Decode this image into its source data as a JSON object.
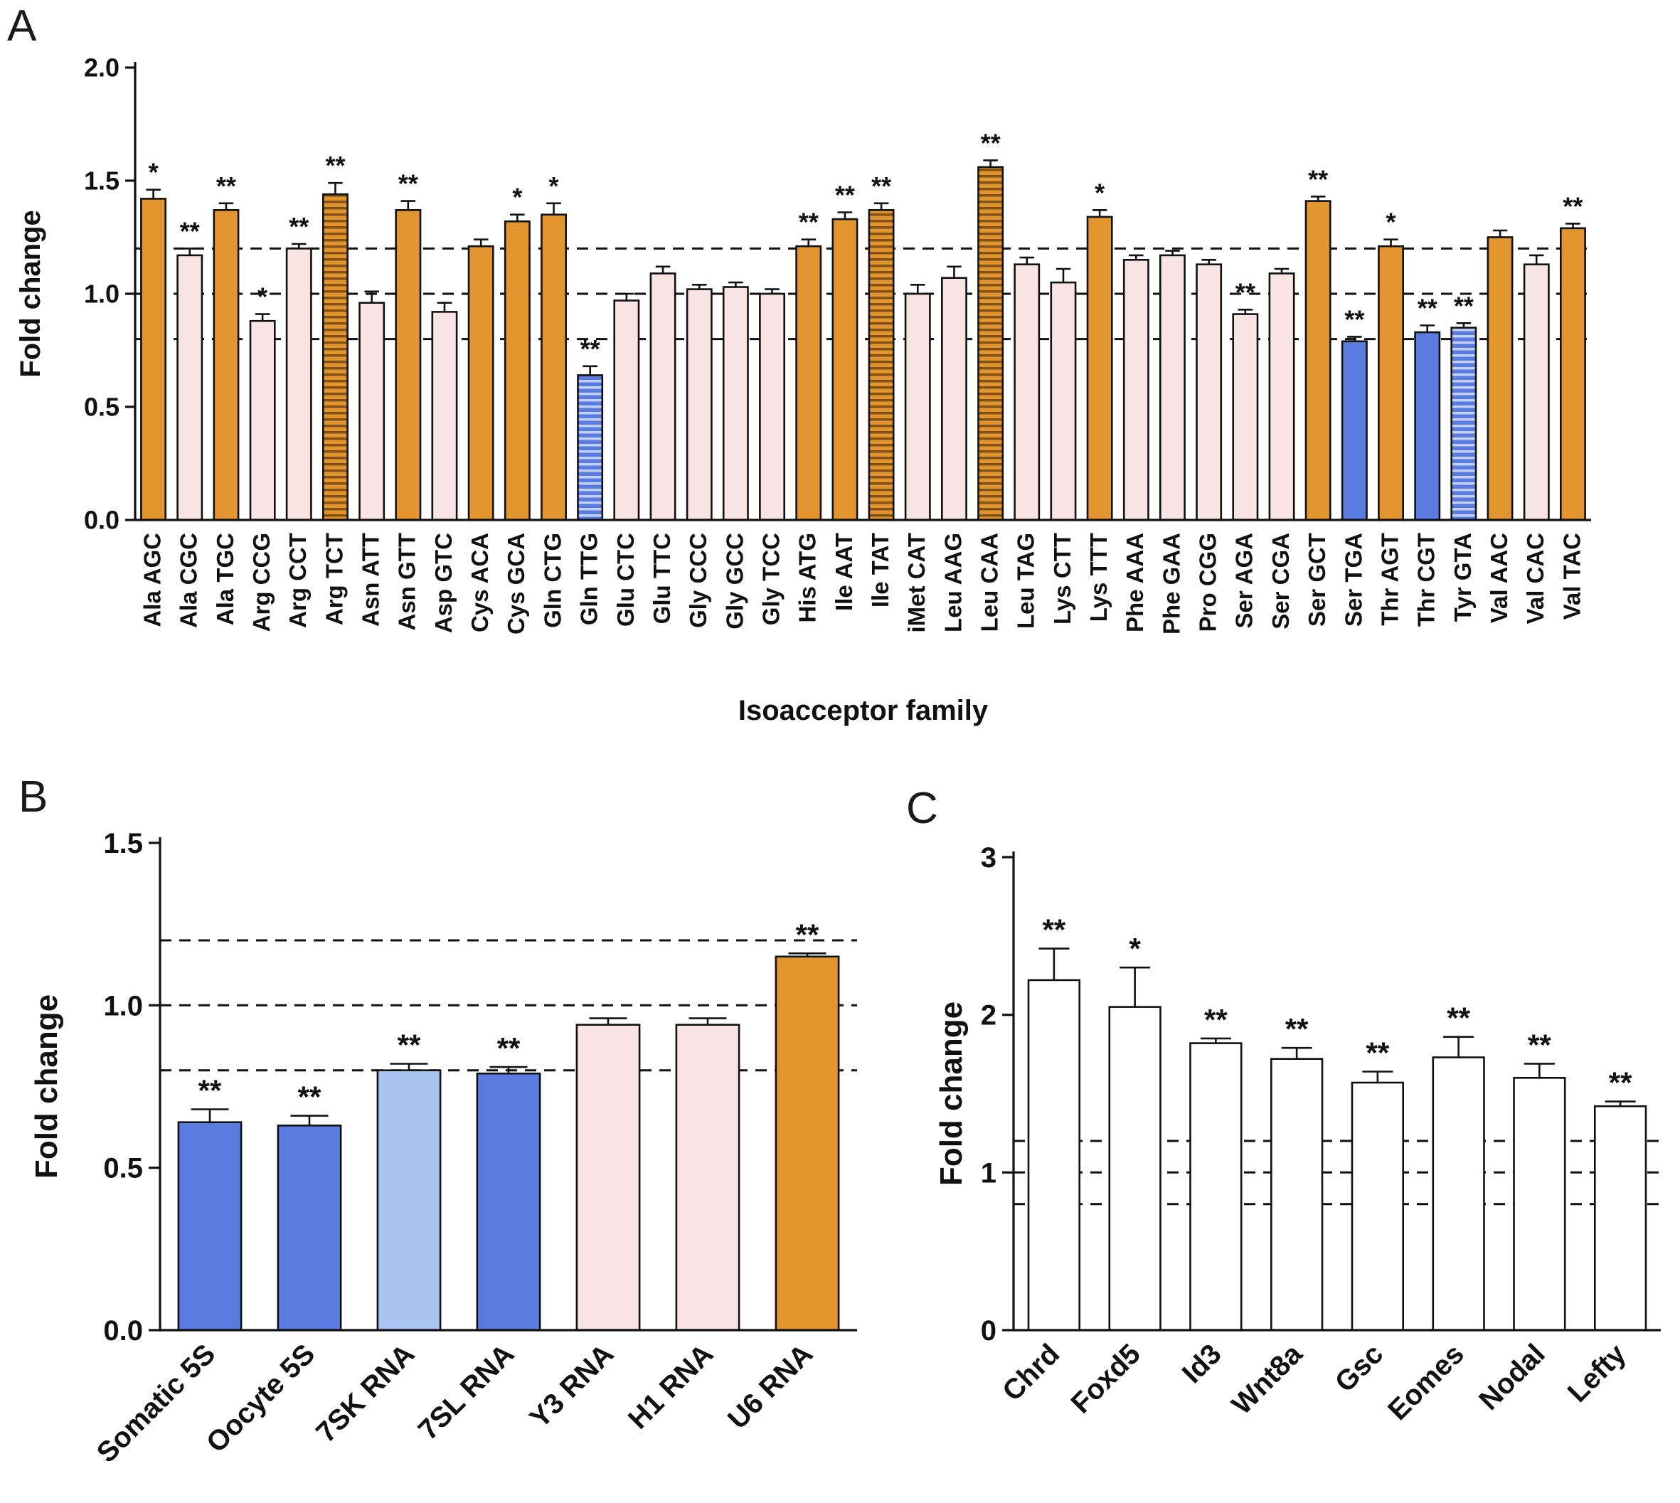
{
  "panels": [
    {
      "letter": "A"
    },
    {
      "letter": "B"
    },
    {
      "letter": "C"
    }
  ],
  "colors": {
    "orange": "#E2952F",
    "pink": "#F8E4E2",
    "blue": "#5A7CE0",
    "lightblue": "#A9C4F0",
    "white": "#FFFFFF"
  },
  "chart_data": [
    {
      "panel": "A",
      "type": "bar",
      "title": "",
      "ylabel": "Fold change",
      "xlabel": "Isoacceptor family",
      "ylim": [
        0,
        2.0
      ],
      "yticks": [
        "0.0",
        "0.5",
        "1.0",
        "1.5",
        "2.0"
      ],
      "dashed_lines": [
        0.8,
        1.0,
        1.2
      ],
      "grid": false,
      "categories": [
        "Ala AGC",
        "Ala CGC",
        "Ala TGC",
        "Arg CCG",
        "Arg CCT",
        "Arg TCT",
        "Asn ATT",
        "Asn GTT",
        "Asp GTC",
        "Cys ACA",
        "Cys GCA",
        "Gln CTG",
        "Gln TTG",
        "Glu CTC",
        "Glu TTC",
        "Gly CCC",
        "Gly GCC",
        "Gly TCC",
        "His ATG",
        "Ile AAT",
        "Ile TAT",
        "iMet CAT",
        "Leu AAG",
        "Leu CAA",
        "Leu TAG",
        "Lys CTT",
        "Lys TTT",
        "Phe AAA",
        "Phe GAA",
        "Pro CGG",
        "Ser AGA",
        "Ser CGA",
        "Ser GCT",
        "Ser TGA",
        "Thr AGT",
        "Thr CGT",
        "Tyr GTA",
        "Val AAC",
        "Val CAC",
        "Val TAC"
      ],
      "values": [
        1.42,
        1.17,
        1.37,
        0.88,
        1.2,
        1.44,
        0.96,
        1.37,
        0.92,
        1.21,
        1.32,
        1.35,
        0.64,
        0.97,
        1.09,
        1.02,
        1.03,
        1.0,
        1.21,
        1.33,
        1.37,
        1.0,
        1.07,
        1.56,
        1.13,
        1.05,
        1.34,
        1.15,
        1.17,
        1.13,
        0.91,
        1.09,
        1.41,
        0.79,
        1.21,
        0.83,
        0.85,
        1.25,
        1.13,
        1.29
      ],
      "errors": [
        0.04,
        0.03,
        0.03,
        0.03,
        0.02,
        0.05,
        0.05,
        0.04,
        0.04,
        0.03,
        0.03,
        0.05,
        0.04,
        0.03,
        0.03,
        0.02,
        0.02,
        0.02,
        0.03,
        0.03,
        0.03,
        0.04,
        0.05,
        0.03,
        0.03,
        0.06,
        0.03,
        0.02,
        0.02,
        0.02,
        0.02,
        0.02,
        0.02,
        0.02,
        0.03,
        0.03,
        0.02,
        0.03,
        0.04,
        0.02
      ],
      "styles": [
        "orange",
        "pink",
        "orange",
        "pink",
        "pink",
        "orange_striped",
        "pink",
        "orange",
        "pink",
        "orange",
        "orange",
        "orange",
        "blue_striped",
        "pink",
        "pink",
        "pink",
        "pink",
        "pink",
        "orange",
        "orange",
        "orange_striped",
        "pink",
        "pink",
        "orange_striped",
        "pink",
        "pink",
        "orange",
        "pink",
        "pink",
        "pink",
        "pink",
        "pink",
        "orange",
        "blue",
        "orange",
        "blue",
        "blue_striped",
        "orange",
        "pink",
        "orange"
      ],
      "significance": [
        "*",
        "**",
        "**",
        "*",
        "**",
        "**",
        "",
        "**",
        "",
        "",
        "*",
        "*",
        "**",
        "",
        "",
        "",
        "",
        "",
        "**",
        "**",
        "**",
        "",
        "",
        "**",
        "",
        "",
        "*",
        "",
        "",
        "",
        "**",
        "",
        "**",
        "**",
        "*",
        "**",
        "**",
        "",
        "",
        "**"
      ]
    },
    {
      "panel": "B",
      "type": "bar",
      "title": "",
      "ylabel": "Fold change",
      "xlabel": "",
      "ylim": [
        0,
        1.5
      ],
      "yticks": [
        "0.0",
        "0.5",
        "1.0",
        "1.5"
      ],
      "dashed_lines": [
        0.8,
        1.0,
        1.2
      ],
      "grid": false,
      "categories": [
        "Somatic 5S",
        "Oocyte 5S",
        "7SK RNA",
        "7SL RNA",
        "Y3 RNA",
        "H1 RNA",
        "U6 RNA"
      ],
      "values": [
        0.64,
        0.63,
        0.8,
        0.79,
        0.94,
        0.94,
        1.15
      ],
      "errors": [
        0.04,
        0.03,
        0.02,
        0.02,
        0.02,
        0.02,
        0.01
      ],
      "styles": [
        "blue",
        "blue",
        "lightblue",
        "blue",
        "pink",
        "pink",
        "orange"
      ],
      "significance": [
        "**",
        "**",
        "**",
        "**",
        "",
        "",
        "**"
      ]
    },
    {
      "panel": "C",
      "type": "bar",
      "title": "",
      "ylabel": "Fold change",
      "xlabel": "",
      "ylim": [
        0,
        3
      ],
      "yticks": [
        "0",
        "1",
        "2",
        "3"
      ],
      "dashed_lines": [
        0.8,
        1.0,
        1.2
      ],
      "grid": false,
      "categories": [
        "Chrd",
        "Foxd5",
        "Id3",
        "Wnt8a",
        "Gsc",
        "Eomes",
        "Nodal",
        "Lefty"
      ],
      "values": [
        2.22,
        2.05,
        1.82,
        1.72,
        1.57,
        1.73,
        1.6,
        1.42
      ],
      "errors": [
        0.2,
        0.25,
        0.03,
        0.07,
        0.07,
        0.13,
        0.09,
        0.03
      ],
      "styles": [
        "white",
        "white",
        "white",
        "white",
        "white",
        "white",
        "white",
        "white"
      ],
      "significance": [
        "**",
        "*",
        "**",
        "**",
        "**",
        "**",
        "**",
        "**"
      ]
    }
  ]
}
